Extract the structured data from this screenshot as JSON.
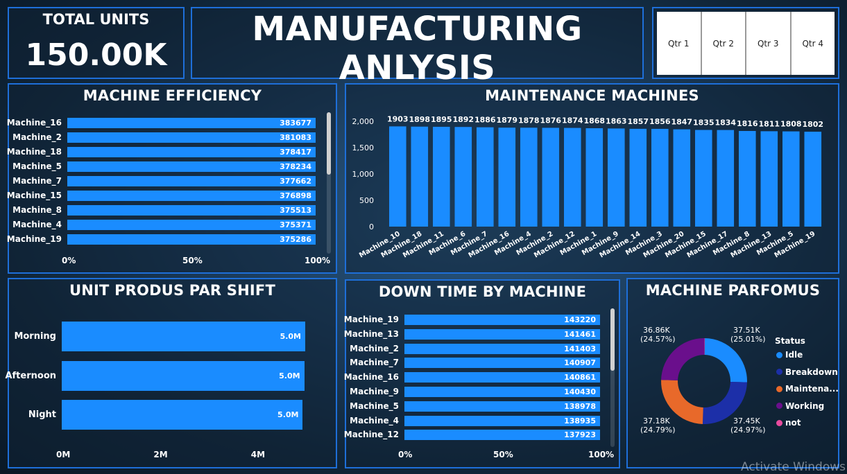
{
  "kpi": {
    "label": "TOTAL UNITS",
    "value": "150.00K"
  },
  "title": "MANUFACTURING ANLYSIS",
  "slicer": {
    "items": [
      "Qtr 1",
      "Qtr 2",
      "Qtr 3",
      "Qtr 4"
    ]
  },
  "efficiency": {
    "title": "MACHINE EFFICIENCY",
    "x_ticks": [
      "0%",
      "50%",
      "100%"
    ]
  },
  "maintenance": {
    "title": "MAINTENANCE MACHINES"
  },
  "shift": {
    "title": "UNIT PRODUS PAR SHIFT"
  },
  "downtime": {
    "title": "DOWN TIME BY MACHINE",
    "x_ticks": [
      "0%",
      "50%",
      "100%"
    ]
  },
  "performance": {
    "title": "MACHINE PARFOMUS",
    "legend_title": "Status"
  },
  "watermark": "Activate Windows",
  "chart_data": [
    {
      "type": "bar",
      "orientation": "horizontal",
      "title": "MACHINE EFFICIENCY",
      "categories": [
        "Machine_16",
        "Machine_2",
        "Machine_18",
        "Machine_5",
        "Machine_7",
        "Machine_15",
        "Machine_8",
        "Machine_4",
        "Machine_19"
      ],
      "values": [
        383677,
        381083,
        378417,
        378234,
        377662,
        376898,
        375513,
        375371,
        375286
      ],
      "data_labels": [
        "383677",
        "381083",
        "378417",
        "378234",
        "377662",
        "376898",
        "375513",
        "375371",
        "375286"
      ],
      "x_ticks": [
        "0%",
        "50%",
        "100%"
      ],
      "xlim": [
        0,
        100
      ],
      "value_scale": "percent-of-total (each bar ~100%)"
    },
    {
      "type": "bar",
      "title": "MAINTENANCE MACHINES",
      "categories": [
        "Machine_10",
        "Machine_18",
        "Machine_11",
        "Machine_6",
        "Machine_7",
        "Machine_16",
        "Machine_4",
        "Machine_2",
        "Machine_12",
        "Machine_1",
        "Machine_9",
        "Machine_14",
        "Machine_3",
        "Machine_20",
        "Machine_15",
        "Machine_17",
        "Machine_8",
        "Machine_13",
        "Machine_5",
        "Machine_19"
      ],
      "values": [
        1903,
        1898,
        1895,
        1892,
        1886,
        1879,
        1878,
        1876,
        1874,
        1868,
        1863,
        1857,
        1856,
        1847,
        1835,
        1834,
        1816,
        1811,
        1808,
        1802
      ],
      "y_ticks": [
        "0",
        "500",
        "1,000",
        "1,500",
        "2,000"
      ],
      "ylim": [
        0,
        2100
      ]
    },
    {
      "type": "bar",
      "orientation": "horizontal",
      "title": "UNIT PRODUS PAR SHIFT",
      "categories": [
        "Morning",
        "Afternoon",
        "Night"
      ],
      "values": [
        5.0,
        4.98,
        4.95
      ],
      "data_labels": [
        "5.0M",
        "5.0M",
        "5.0M"
      ],
      "x_ticks": [
        "0M",
        "2M",
        "4M"
      ],
      "xlim": [
        0,
        5.7
      ],
      "unit": "M"
    },
    {
      "type": "bar",
      "orientation": "horizontal",
      "title": "DOWN TIME BY MACHINE",
      "categories": [
        "Machine_19",
        "Machine_13",
        "Machine_2",
        "Machine_7",
        "Machine_16",
        "Machine_9",
        "Machine_5",
        "Machine_4",
        "Machine_12"
      ],
      "values": [
        143220,
        141461,
        141403,
        140907,
        140861,
        140430,
        138978,
        138935,
        137923
      ],
      "data_labels": [
        "143220",
        "141461",
        "141403",
        "140907",
        "140861",
        "140430",
        "138978",
        "138935",
        "137923"
      ],
      "x_ticks": [
        "0%",
        "50%",
        "100%"
      ],
      "xlim": [
        0,
        100
      ],
      "value_scale": "percent-of-total (each bar ~100%)"
    },
    {
      "type": "pie",
      "subtype": "donut",
      "title": "MACHINE PARFOMUS",
      "legend_title": "Status",
      "legend_position": "right",
      "slices": [
        {
          "label": "Idle",
          "value": 37.51,
          "value_label": "37.51K",
          "pct_label": "(25.01%)",
          "color": "#1a8cff"
        },
        {
          "label": "Breakdown",
          "value": 37.45,
          "value_label": "37.45K",
          "pct_label": "(24.97%)",
          "color": "#1c2fa8"
        },
        {
          "label": "Maintena...",
          "value": 37.18,
          "value_label": "37.18K",
          "pct_label": "(24.79%)",
          "color": "#e8692a"
        },
        {
          "label": "Working",
          "value": 36.86,
          "value_label": "36.86K",
          "pct_label": "(24.57%)",
          "color": "#6a0f8c"
        },
        {
          "label": "not",
          "value": 0.2,
          "value_label": "",
          "pct_label": "",
          "color": "#e84b9e"
        }
      ]
    }
  ],
  "colors": {
    "bar": "#1a8cff",
    "border": "#1e6fd9",
    "background": "#1d3f60"
  }
}
